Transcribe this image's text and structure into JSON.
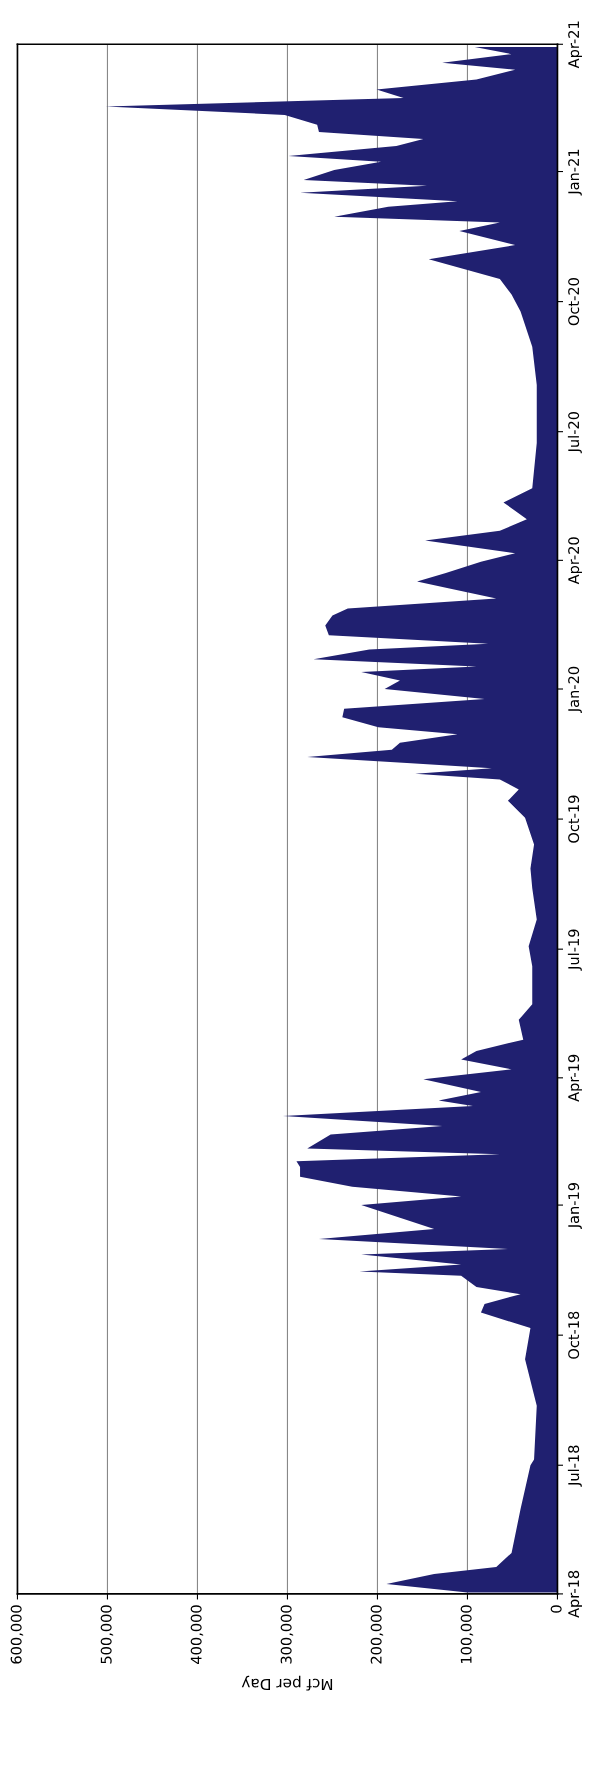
{
  "chart_data": {
    "type": "area",
    "orientation": "horizontal",
    "color": "#202070",
    "xlabel": "Mcf per Day",
    "grid": "x",
    "xlim": [
      600000,
      0
    ],
    "xticks": [
      {
        "value": 600000,
        "label": "600,000"
      },
      {
        "value": 500000,
        "label": "500,000"
      },
      {
        "value": 400000,
        "label": "400,000"
      },
      {
        "value": 300000,
        "label": "300,000"
      },
      {
        "value": 200000,
        "label": "200,000"
      },
      {
        "value": 100000,
        "label": "100,000"
      },
      0
    ],
    "ylim": [
      "2018-04-01",
      "2021-04-01"
    ],
    "yticks": [
      {
        "value": "2018-04-01",
        "label": "Apr-18"
      },
      {
        "value": "2018-07-01",
        "label": "Jul-18"
      },
      {
        "value": "2018-10-01",
        "label": "Oct-18"
      },
      {
        "value": "2019-01-01",
        "label": "Jan-19"
      },
      {
        "value": "2019-04-01",
        "label": "Apr-19"
      },
      {
        "value": "2019-07-01",
        "label": "Jul-19"
      },
      {
        "value": "2019-10-01",
        "label": "Oct-19"
      },
      {
        "value": "2020-01-01",
        "label": "Jan-20"
      },
      {
        "value": "2020-04-01",
        "label": "Apr-20"
      },
      {
        "value": "2020-07-01",
        "label": "Jul-20"
      },
      {
        "value": "2020-10-01",
        "label": "Oct-20"
      },
      {
        "value": "2021-01-01",
        "label": "Jan-21"
      },
      {
        "value": "2021-04-01",
        "label": "Apr-21"
      }
    ],
    "x": [
      "2018-04-02",
      "2018-04-08",
      "2018-04-15",
      "2018-04-20",
      "2018-04-30",
      "2018-05-31",
      "2018-07-01",
      "2018-07-05",
      "2018-08-12",
      "2018-09-14",
      "2018-10-06",
      "2018-10-17",
      "2018-10-23",
      "2018-10-30",
      "2018-11-04",
      "2018-11-12",
      "2018-11-15",
      "2018-11-20",
      "2018-11-27",
      "2018-12-01",
      "2018-12-08",
      "2018-12-15",
      "2018-12-23",
      "2019-01-01",
      "2019-01-07",
      "2019-01-14",
      "2019-01-21",
      "2019-01-28",
      "2019-02-01",
      "2019-02-06",
      "2019-02-10",
      "2019-02-20",
      "2019-02-26",
      "2019-03-05",
      "2019-03-12",
      "2019-03-16",
      "2019-03-22",
      "2019-03-31",
      "2019-04-07",
      "2019-04-14",
      "2019-04-20",
      "2019-04-28",
      "2019-05-12",
      "2019-05-23",
      "2019-06-19",
      "2019-07-03",
      "2019-07-22",
      "2019-08-13",
      "2019-08-27",
      "2019-09-13",
      "2019-10-02",
      "2019-10-14",
      "2019-10-22",
      "2019-10-29",
      "2019-11-02",
      "2019-11-06",
      "2019-11-14",
      "2019-11-19",
      "2019-11-24",
      "2019-11-30",
      "2019-12-05",
      "2019-12-12",
      "2019-12-18",
      "2019-12-25",
      "2020-01-01",
      "2020-01-07",
      "2020-01-13",
      "2020-01-17",
      "2020-01-22",
      "2020-01-29",
      "2020-02-02",
      "2020-02-08",
      "2020-02-15",
      "2020-02-22",
      "2020-02-27",
      "2020-03-05",
      "2020-03-12",
      "2020-03-17",
      "2020-03-23",
      "2020-03-31",
      "2020-04-06",
      "2020-04-15",
      "2020-04-22",
      "2020-04-30",
      "2020-05-12",
      "2020-05-22",
      "2020-06-23",
      "2020-08-03",
      "2020-08-30",
      "2020-09-24",
      "2020-10-06",
      "2020-10-17",
      "2020-10-31",
      "2020-11-10",
      "2020-11-20",
      "2020-11-26",
      "2020-11-30",
      "2020-12-07",
      "2020-12-11",
      "2020-12-17",
      "2020-12-22",
      "2020-12-26",
      "2021-01-02",
      "2021-01-08",
      "2021-01-12",
      "2021-01-19",
      "2021-01-24",
      "2021-01-29",
      "2021-02-03",
      "2021-02-10",
      "2021-02-16",
      "2021-02-22",
      "2021-02-28",
      "2021-03-07",
      "2021-03-14",
      "2021-03-19",
      "2021-03-25",
      "2021-03-30"
    ],
    "values": [
      100000,
      190000,
      137000,
      68000,
      51000,
      41000,
      30000,
      26000,
      23000,
      36000,
      30000,
      85000,
      81000,
      41000,
      90000,
      107000,
      220000,
      107000,
      218000,
      55000,
      265000,
      137000,
      175000,
      218000,
      107000,
      228000,
      286000,
      286000,
      290000,
      64000,
      278000,
      252000,
      128000,
      305000,
      94000,
      132000,
      85000,
      149000,
      51000,
      107000,
      90000,
      38000,
      43000,
      28000,
      28000,
      32000,
      23000,
      28000,
      30000,
      26000,
      36000,
      55000,
      43000,
      64000,
      158000,
      73000,
      278000,
      184000,
      175000,
      111000,
      199000,
      239000,
      237000,
      81000,
      192000,
      175000,
      218000,
      90000,
      271000,
      209000,
      77000,
      254000,
      258000,
      250000,
      233000,
      68000,
      120000,
      156000,
      124000,
      85000,
      47000,
      147000,
      64000,
      34000,
      60000,
      28000,
      23000,
      23000,
      28000,
      41000,
      51000,
      64000,
      143000,
      47000,
      109000,
      64000,
      248000,
      188000,
      111000,
      286000,
      145000,
      282000,
      248000,
      196000,
      299000,
      179000,
      149000,
      265000,
      267000,
      303000,
      502000,
      171000,
      201000,
      90000,
      47000,
      128000,
      51000,
      92000
    ]
  }
}
